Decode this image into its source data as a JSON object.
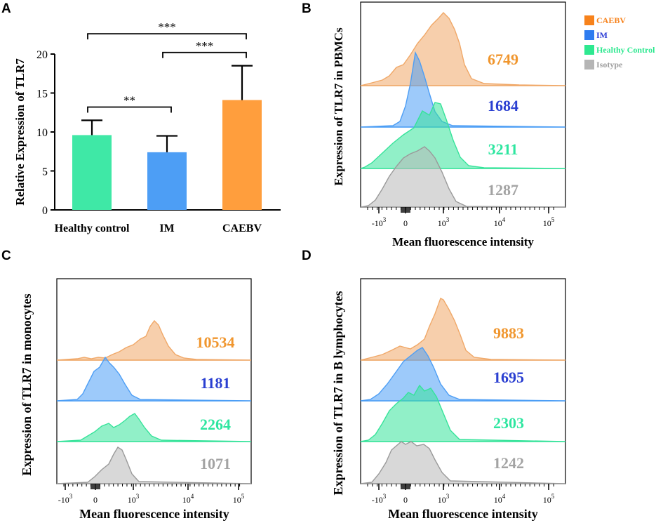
{
  "chart_data": [
    {
      "panel": "A",
      "type": "bar",
      "ylabel": "Relative Expression of TLR7",
      "ylim": [
        0,
        20
      ],
      "yticks": [
        0,
        5,
        10,
        15,
        20
      ],
      "categories": [
        "Healthy control",
        "IM",
        "CAEBV"
      ],
      "values": [
        9.6,
        7.4,
        14.1
      ],
      "errors": [
        1.9,
        2.1,
        4.4
      ],
      "colors": [
        "#3fe8a6",
        "#4d9ef5",
        "#ff9e3d"
      ],
      "significance": [
        {
          "from": 0,
          "to": 1,
          "label": "**",
          "level": 13.2
        },
        {
          "from": 1,
          "to": 2,
          "label": "***",
          "level": 20.2
        },
        {
          "from": 0,
          "to": 2,
          "label": "***",
          "level": 22.6
        }
      ]
    },
    {
      "panel": "B",
      "type": "histogram",
      "ylabel": "Expression of TLR7 in PBMCs",
      "xlabel": "Mean fluorescence intensity",
      "xticks": [
        "-10^3",
        "0",
        "10^3",
        "10^4",
        "10^5"
      ],
      "series": [
        {
          "name": "CAEBV",
          "mfi": "6749",
          "color": "#f0a868"
        },
        {
          "name": "IM",
          "mfi": "1684",
          "color": "#4d9ef5"
        },
        {
          "name": "Healthy Control",
          "mfi": "3211",
          "color": "#36e39a"
        },
        {
          "name": "Isotype",
          "mfi": "1287",
          "color": "#b8b8b8"
        }
      ]
    },
    {
      "panel": "C",
      "type": "histogram",
      "ylabel": "Expression of TLR7 in monocytes",
      "xlabel": "Mean fluorescence intensity",
      "xticks": [
        "-10^3",
        "0",
        "10^3",
        "10^4",
        "10^5"
      ],
      "series": [
        {
          "name": "CAEBV",
          "mfi": "10534",
          "color": "#f0a868"
        },
        {
          "name": "IM",
          "mfi": "1181",
          "color": "#4d9ef5"
        },
        {
          "name": "Healthy Control",
          "mfi": "2264",
          "color": "#36e39a"
        },
        {
          "name": "Isotype",
          "mfi": "1071",
          "color": "#b8b8b8"
        }
      ]
    },
    {
      "panel": "D",
      "type": "histogram",
      "ylabel": "Expression of TLR7 in B lymphocytes",
      "xlabel": "Mean fluorescence intensity",
      "xticks": [
        "-10^3",
        "0",
        "10^3",
        "10^4",
        "10^5"
      ],
      "series": [
        {
          "name": "CAEBV",
          "mfi": "9883",
          "color": "#f0a868"
        },
        {
          "name": "IM",
          "mfi": "1695",
          "color": "#4d9ef5"
        },
        {
          "name": "Healthy Control",
          "mfi": "2303",
          "color": "#36e39a"
        },
        {
          "name": "Isotype",
          "mfi": "1242",
          "color": "#b8b8b8"
        }
      ]
    }
  ],
  "legend": [
    {
      "label": "CAEBV",
      "color": "#f7821b",
      "text_color": "#f7821b"
    },
    {
      "label": "IM",
      "color": "#2e7cf0",
      "text_color": "#2e3fd6"
    },
    {
      "label": "Healthy Control",
      "color": "#2ee890",
      "text_color": "#2ee890"
    },
    {
      "label": "Isotype",
      "color": "#b5b5b5",
      "text_color": "#a0a0a0"
    }
  ],
  "mfi_colors": [
    "#f0962e",
    "#2a3fd1",
    "#2ee6a0",
    "#a3a3a3"
  ],
  "panel_labels": [
    "A",
    "B",
    "C",
    "D"
  ]
}
